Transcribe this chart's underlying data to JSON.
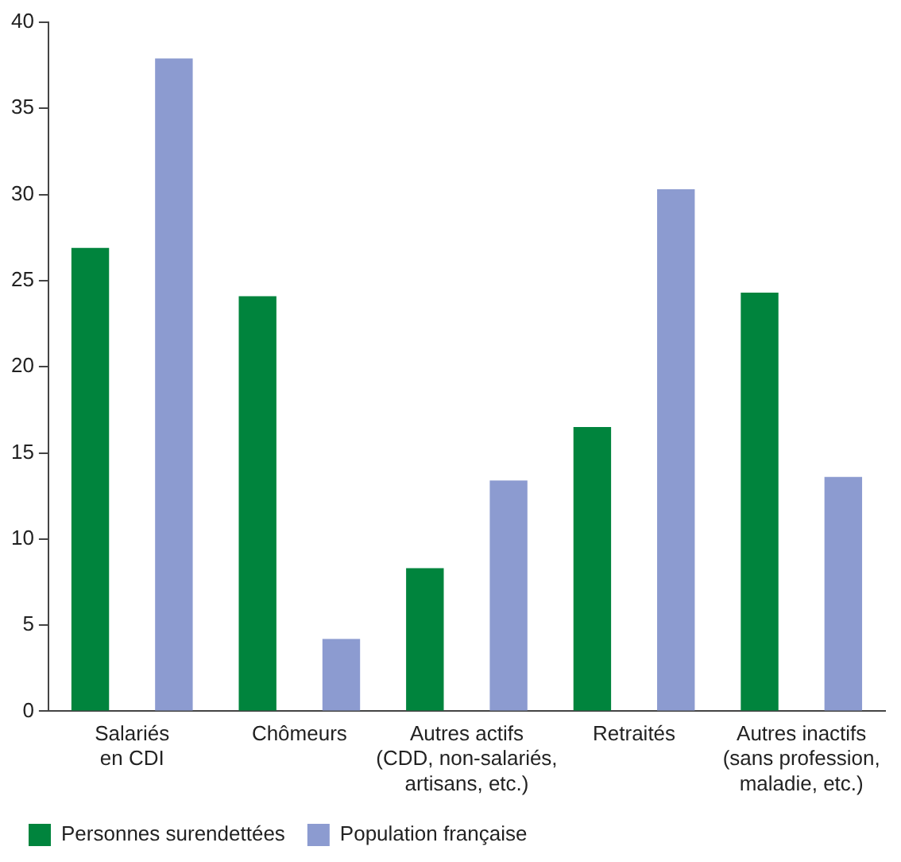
{
  "chart_data": {
    "type": "bar",
    "categories": [
      "Salariés\nen CDI",
      "Chômeurs",
      "Autres actifs\n(CDD, non-salariés,\nartisans, etc.)",
      "Retraités",
      "Autres inactifs\n(sans profession,\nmaladie, etc.)"
    ],
    "series": [
      {
        "name": "Personnes surendettées",
        "color": "#00843d",
        "values": [
          26.9,
          24.1,
          8.3,
          16.5,
          24.3
        ]
      },
      {
        "name": "Population française",
        "color": "#8c9bd0",
        "values": [
          37.9,
          4.2,
          13.4,
          30.3,
          13.6
        ]
      }
    ],
    "ylim": [
      0,
      40
    ],
    "yticks": [
      0,
      5,
      10,
      15,
      20,
      25,
      30,
      35,
      40
    ],
    "grid": false,
    "legend": "bottom left"
  }
}
